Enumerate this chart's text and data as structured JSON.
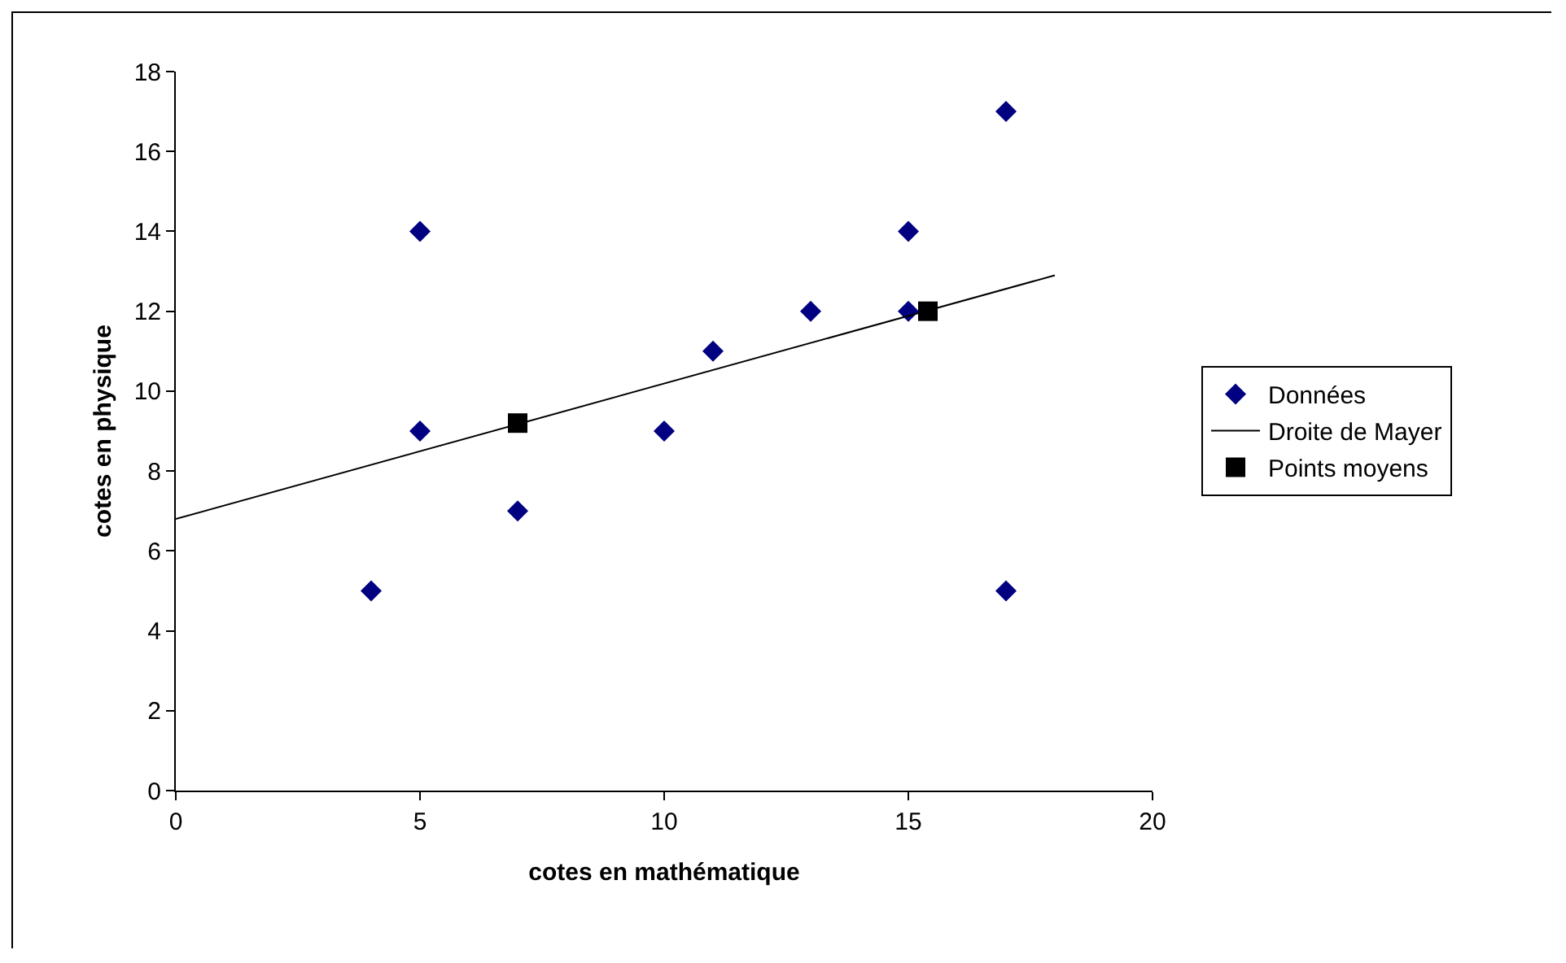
{
  "chart_data": {
    "type": "scatter",
    "xlabel": "cotes en mathématique",
    "ylabel": "cotes en physique",
    "xlim": [
      0,
      20
    ],
    "xticks": [
      0,
      5,
      10,
      15,
      20
    ],
    "ylim": [
      0,
      18
    ],
    "yticks": [
      0,
      2,
      4,
      6,
      8,
      10,
      12,
      14,
      16,
      18
    ],
    "grid": false,
    "legend": "right",
    "series": [
      {
        "name": "Données",
        "type": "scatter",
        "marker": "diamond",
        "color": "#000080",
        "x": [
          4,
          5,
          5,
          7,
          10,
          11,
          13,
          15,
          15,
          17,
          17
        ],
        "values": [
          5,
          14,
          9,
          7,
          9,
          11,
          12,
          14,
          12,
          17,
          5
        ]
      },
      {
        "name": "Droite de Mayer",
        "type": "line",
        "marker": "none",
        "color": "#000000",
        "x": [
          0,
          18
        ],
        "values": [
          6.8,
          12.9
        ]
      },
      {
        "name": "Points moyens",
        "type": "scatter",
        "marker": "square",
        "color": "#000000",
        "x": [
          7,
          15.4
        ],
        "values": [
          9.2,
          12.0
        ]
      }
    ]
  }
}
